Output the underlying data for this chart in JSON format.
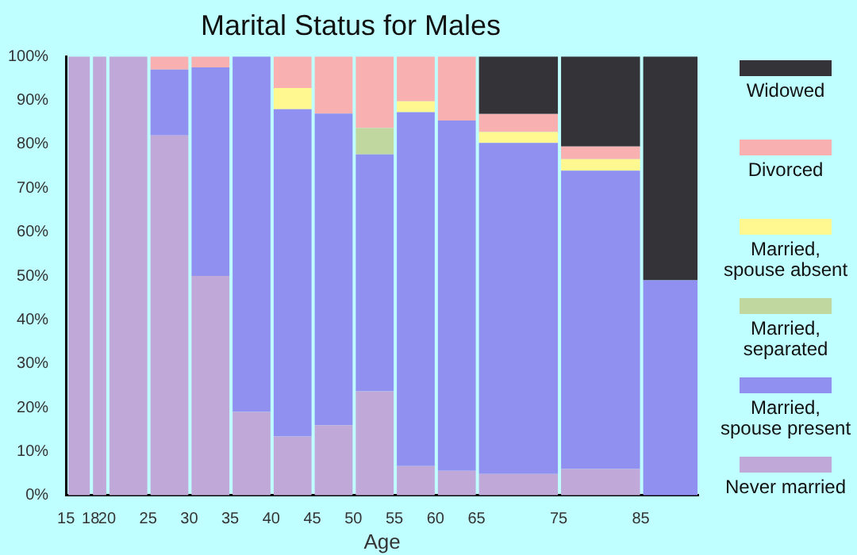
{
  "chart_data": {
    "type": "bar",
    "title": "Marital Status for Males",
    "xlabel": "Age",
    "stacked": true,
    "legend": "right",
    "grid": false,
    "x": [
      16.5,
      19,
      22.5,
      27.5,
      32.5,
      37.5,
      42.5,
      47.5,
      52.5,
      57.5,
      62.5,
      70,
      80,
      88.5
    ],
    "xlim": [
      15,
      92
    ],
    "xticks": [
      15,
      18,
      20,
      25,
      30,
      35,
      40,
      45,
      50,
      55,
      60,
      65,
      75,
      85
    ],
    "ylim": [
      0,
      100
    ],
    "yticks": [
      {
        "value": 0,
        "label": "0%"
      },
      {
        "value": 10,
        "label": "10%"
      },
      {
        "value": 20,
        "label": "20%"
      },
      {
        "value": 30,
        "label": "30%"
      },
      {
        "value": 40,
        "label": "40%"
      },
      {
        "value": 50,
        "label": "50%"
      },
      {
        "value": 60,
        "label": "60%"
      },
      {
        "value": 70,
        "label": "70%"
      },
      {
        "value": 80,
        "label": "80%"
      },
      {
        "value": 90,
        "label": "90%"
      },
      {
        "value": 100,
        "label": "100%"
      }
    ],
    "series": [
      {
        "name": "Never married",
        "color": "#c0a8d8",
        "values": [
          100,
          100,
          100,
          82,
          50,
          19,
          13.4,
          16,
          23.7,
          6.7,
          5.6,
          4.9,
          6,
          0
        ]
      },
      {
        "name": "Married, spouse present",
        "color": "#9090f0",
        "values": [
          0,
          0,
          0,
          15,
          47.5,
          81,
          74.6,
          71,
          54,
          80.6,
          79.8,
          75.4,
          68,
          49
        ]
      },
      {
        "name": "Married, separated",
        "color": "#c0d8a0",
        "values": [
          0,
          0,
          0,
          0,
          0,
          0,
          0,
          0,
          6,
          0,
          0,
          0,
          0,
          0
        ]
      },
      {
        "name": "Married, spouse absent",
        "color": "#fff890",
        "values": [
          0,
          0,
          0,
          0,
          0,
          0,
          4.8,
          0,
          0,
          2.5,
          0,
          2.5,
          2.6,
          0
        ]
      },
      {
        "name": "Divorced",
        "color": "#f8b0b0",
        "values": [
          0,
          0,
          0,
          3,
          2.5,
          0,
          7.2,
          13,
          16.3,
          10.2,
          14.6,
          4.1,
          2.9,
          0
        ]
      },
      {
        "name": "Widowed",
        "color": "#333338",
        "values": [
          0,
          0,
          0,
          0,
          0,
          0,
          0,
          0,
          0,
          0,
          0,
          13.1,
          20.5,
          51
        ]
      }
    ]
  }
}
